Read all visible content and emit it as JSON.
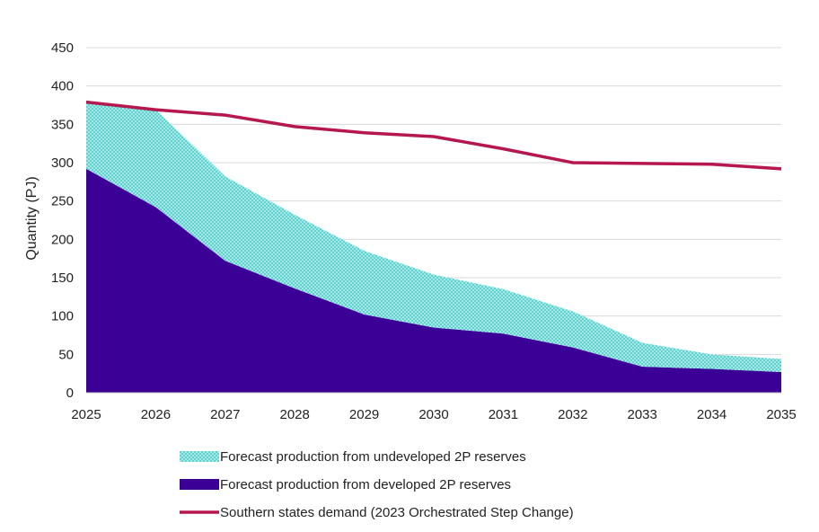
{
  "chart_data": {
    "type": "area",
    "title": "",
    "xlabel": "",
    "ylabel": "Quantity (PJ)",
    "ylim": [
      0,
      450
    ],
    "ytick_step": 50,
    "grid": true,
    "legend_position": "bottom",
    "x": [
      "2025",
      "2026",
      "2027",
      "2028",
      "2029",
      "2030",
      "2031",
      "2032",
      "2033",
      "2034",
      "2035"
    ],
    "series": [
      {
        "name": "Forecast production from developed 2P reserves",
        "kind": "stacked-area",
        "color": "#3b0096",
        "values": [
          292,
          242,
          172,
          136,
          102,
          85,
          77,
          59,
          34,
          31,
          27
        ]
      },
      {
        "name": "Forecast production from undeveloped 2P reserves",
        "kind": "stacked-area",
        "color": "#5fd3d0",
        "pattern": "dotted",
        "values": [
          89,
          127,
          110,
          96,
          83,
          69,
          58,
          47,
          31,
          19,
          17
        ]
      },
      {
        "name": "Southern states demand (2023 Orchestrated Step Change)",
        "kind": "line",
        "color": "#b5174e",
        "values": [
          379,
          369,
          362,
          347,
          339,
          334,
          318,
          300,
          299,
          298,
          292
        ]
      }
    ],
    "legend": [
      "Forecast production from undeveloped 2P reserves",
      "Forecast production from developed 2P reserves",
      "Southern states demand (2023 Orchestrated Step Change)"
    ]
  }
}
